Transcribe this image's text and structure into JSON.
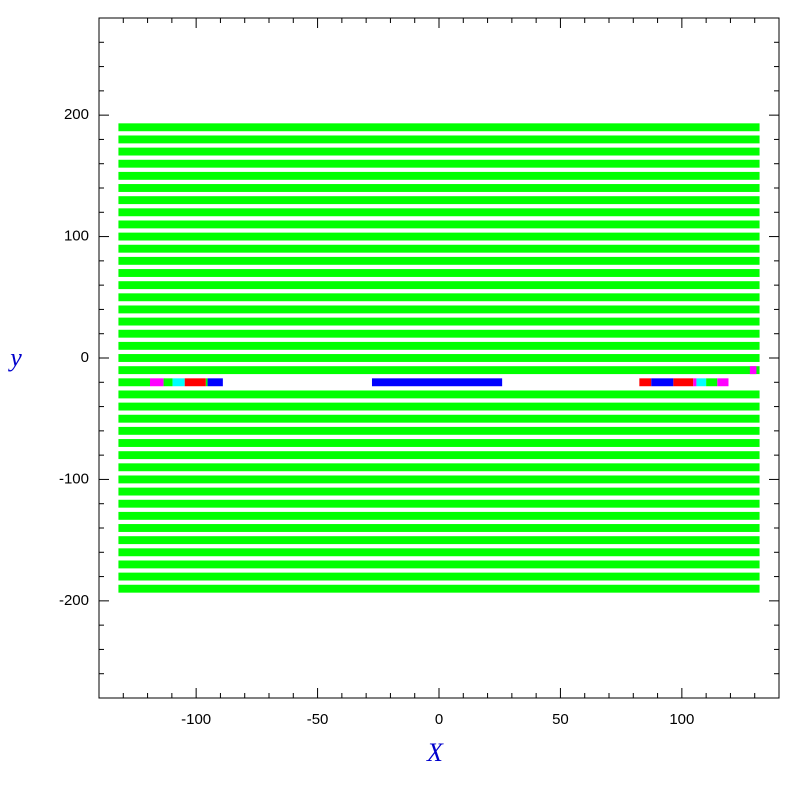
{
  "chart_data": {
    "type": "strips",
    "x_label": "X",
    "y_label": "y",
    "xlim": [
      -140,
      140
    ],
    "ylim": [
      -280,
      280
    ],
    "xticks": [
      -100,
      -50,
      0,
      50,
      100
    ],
    "yticks": [
      -200,
      -100,
      0,
      100,
      200
    ],
    "xminorticks": [
      -130,
      -120,
      -110,
      -90,
      -80,
      -70,
      -60,
      -40,
      -30,
      -20,
      -10,
      10,
      20,
      30,
      40,
      60,
      70,
      80,
      90,
      110,
      120,
      130
    ],
    "yminorticks": [
      -260,
      -240,
      -220,
      -180,
      -160,
      -140,
      -120,
      -80,
      -60,
      -40,
      -20,
      20,
      40,
      60,
      80,
      120,
      140,
      160,
      180,
      220,
      240,
      260
    ],
    "strip_height": 6.5,
    "segments": [
      {
        "y": 190,
        "x0": -132,
        "x1": 132,
        "color": "#00ff00"
      },
      {
        "y": 180,
        "x0": -132,
        "x1": 132,
        "color": "#00ff00"
      },
      {
        "y": 170,
        "x0": -132,
        "x1": 132,
        "color": "#00ff00"
      },
      {
        "y": 160,
        "x0": -132,
        "x1": 132,
        "color": "#00ff00"
      },
      {
        "y": 150,
        "x0": -132,
        "x1": 132,
        "color": "#00ff00"
      },
      {
        "y": 140,
        "x0": -132,
        "x1": 132,
        "color": "#00ff00"
      },
      {
        "y": 130,
        "x0": -132,
        "x1": 132,
        "color": "#00ff00"
      },
      {
        "y": 120,
        "x0": -132,
        "x1": 132,
        "color": "#00ff00"
      },
      {
        "y": 110,
        "x0": -132,
        "x1": 132,
        "color": "#00ff00"
      },
      {
        "y": 100,
        "x0": -132,
        "x1": 132,
        "color": "#00ff00"
      },
      {
        "y": 90,
        "x0": -132,
        "x1": 132,
        "color": "#00ff00"
      },
      {
        "y": 80,
        "x0": -132,
        "x1": 132,
        "color": "#00ff00"
      },
      {
        "y": 70,
        "x0": -132,
        "x1": 132,
        "color": "#00ff00"
      },
      {
        "y": 60,
        "x0": -132,
        "x1": 132,
        "color": "#00ff00"
      },
      {
        "y": 50,
        "x0": -132,
        "x1": 132,
        "color": "#00ff00"
      },
      {
        "y": 40,
        "x0": -132,
        "x1": 132,
        "color": "#00ff00"
      },
      {
        "y": 30,
        "x0": -132,
        "x1": 132,
        "color": "#00ff00"
      },
      {
        "y": 20,
        "x0": -132,
        "x1": 132,
        "color": "#00ff00"
      },
      {
        "y": 10,
        "x0": -132,
        "x1": 132,
        "color": "#00ff00"
      },
      {
        "y": 0,
        "x0": -132,
        "x1": 132,
        "color": "#00ff00"
      },
      {
        "y": -10,
        "x0": -132,
        "x1": 132,
        "color": "#00ff00"
      },
      {
        "y": -10,
        "x0": 128,
        "x1": 130.7,
        "color": "#ff00ff"
      },
      {
        "y": -20,
        "x0": -132,
        "x1": -119,
        "color": "#00ff00"
      },
      {
        "y": -20,
        "x0": -119,
        "x1": -113.4,
        "color": "#ff00ff"
      },
      {
        "y": -20,
        "x0": -113.4,
        "x1": -109.7,
        "color": "#00ff00"
      },
      {
        "y": -20,
        "x0": -109.7,
        "x1": -104.7,
        "color": "#00ffff"
      },
      {
        "y": -20,
        "x0": -104.7,
        "x1": -96,
        "color": "#ff0000"
      },
      {
        "y": -20,
        "x0": -96,
        "x1": -95.3,
        "color": "#00ff00"
      },
      {
        "y": -20,
        "x0": -95.3,
        "x1": -89,
        "color": "#0000ff"
      },
      {
        "y": -20,
        "x0": -27.6,
        "x1": 26,
        "color": "#0000ff"
      },
      {
        "y": -20,
        "x0": 82.5,
        "x1": 87.4,
        "color": "#ff0000"
      },
      {
        "y": -20,
        "x0": 87.4,
        "x1": 96.5,
        "color": "#0000ff"
      },
      {
        "y": -20,
        "x0": 96.5,
        "x1": 104.7,
        "color": "#ff0000"
      },
      {
        "y": -20,
        "x0": 104.7,
        "x1": 106,
        "color": "#ff00ff"
      },
      {
        "y": -20,
        "x0": 106,
        "x1": 110,
        "color": "#00ffff"
      },
      {
        "y": -20,
        "x0": 110,
        "x1": 114.6,
        "color": "#00ff00"
      },
      {
        "y": -20,
        "x0": 114.6,
        "x1": 119.2,
        "color": "#ff00ff"
      },
      {
        "y": -30,
        "x0": -132,
        "x1": 132,
        "color": "#00ff00"
      },
      {
        "y": -40,
        "x0": -132,
        "x1": 132,
        "color": "#00ff00"
      },
      {
        "y": -50,
        "x0": -132,
        "x1": 132,
        "color": "#00ff00"
      },
      {
        "y": -60,
        "x0": -132,
        "x1": 132,
        "color": "#00ff00"
      },
      {
        "y": -70,
        "x0": -132,
        "x1": 132,
        "color": "#00ff00"
      },
      {
        "y": -80,
        "x0": -132,
        "x1": 132,
        "color": "#00ff00"
      },
      {
        "y": -90,
        "x0": -132,
        "x1": 132,
        "color": "#00ff00"
      },
      {
        "y": -100,
        "x0": -132,
        "x1": 132,
        "color": "#00ff00"
      },
      {
        "y": -110,
        "x0": -132,
        "x1": 132,
        "color": "#00ff00"
      },
      {
        "y": -120,
        "x0": -132,
        "x1": 132,
        "color": "#00ff00"
      },
      {
        "y": -130,
        "x0": -132,
        "x1": 132,
        "color": "#00ff00"
      },
      {
        "y": -140,
        "x0": -132,
        "x1": 132,
        "color": "#00ff00"
      },
      {
        "y": -150,
        "x0": -132,
        "x1": 132,
        "color": "#00ff00"
      },
      {
        "y": -160,
        "x0": -132,
        "x1": 132,
        "color": "#00ff00"
      },
      {
        "y": -170,
        "x0": -132,
        "x1": 132,
        "color": "#00ff00"
      },
      {
        "y": -180,
        "x0": -132,
        "x1": 132,
        "color": "#00ff00"
      },
      {
        "y": -190,
        "x0": -132,
        "x1": 132,
        "color": "#00ff00"
      }
    ]
  }
}
